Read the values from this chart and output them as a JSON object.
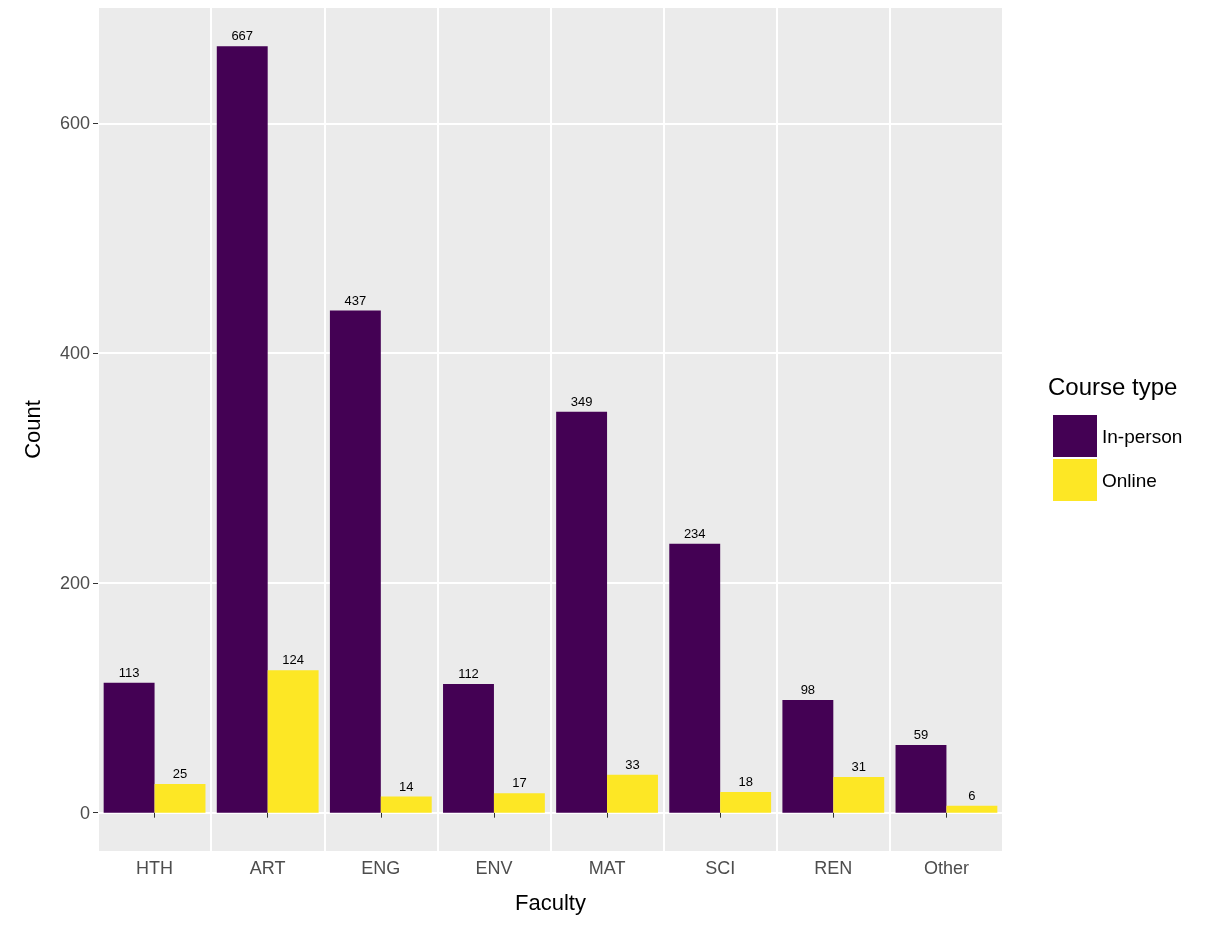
{
  "chart_data": {
    "type": "bar",
    "xlabel": "Faculty",
    "ylabel": "Count",
    "legend_title": "Course type",
    "categories": [
      "HTH",
      "ART",
      "ENG",
      "ENV",
      "MAT",
      "SCI",
      "REN",
      "Other"
    ],
    "series": [
      {
        "name": "In-person",
        "color": "#440154",
        "values": [
          113,
          667,
          437,
          112,
          349,
          234,
          98,
          59
        ]
      },
      {
        "name": "Online",
        "color": "#fde725",
        "values": [
          25,
          124,
          14,
          17,
          33,
          18,
          31,
          6
        ]
      }
    ],
    "ylim": [
      -33.35,
      700.35
    ],
    "yticks": [
      0,
      200,
      400,
      600
    ],
    "grid": true,
    "legend": "right",
    "data_labels": true
  }
}
